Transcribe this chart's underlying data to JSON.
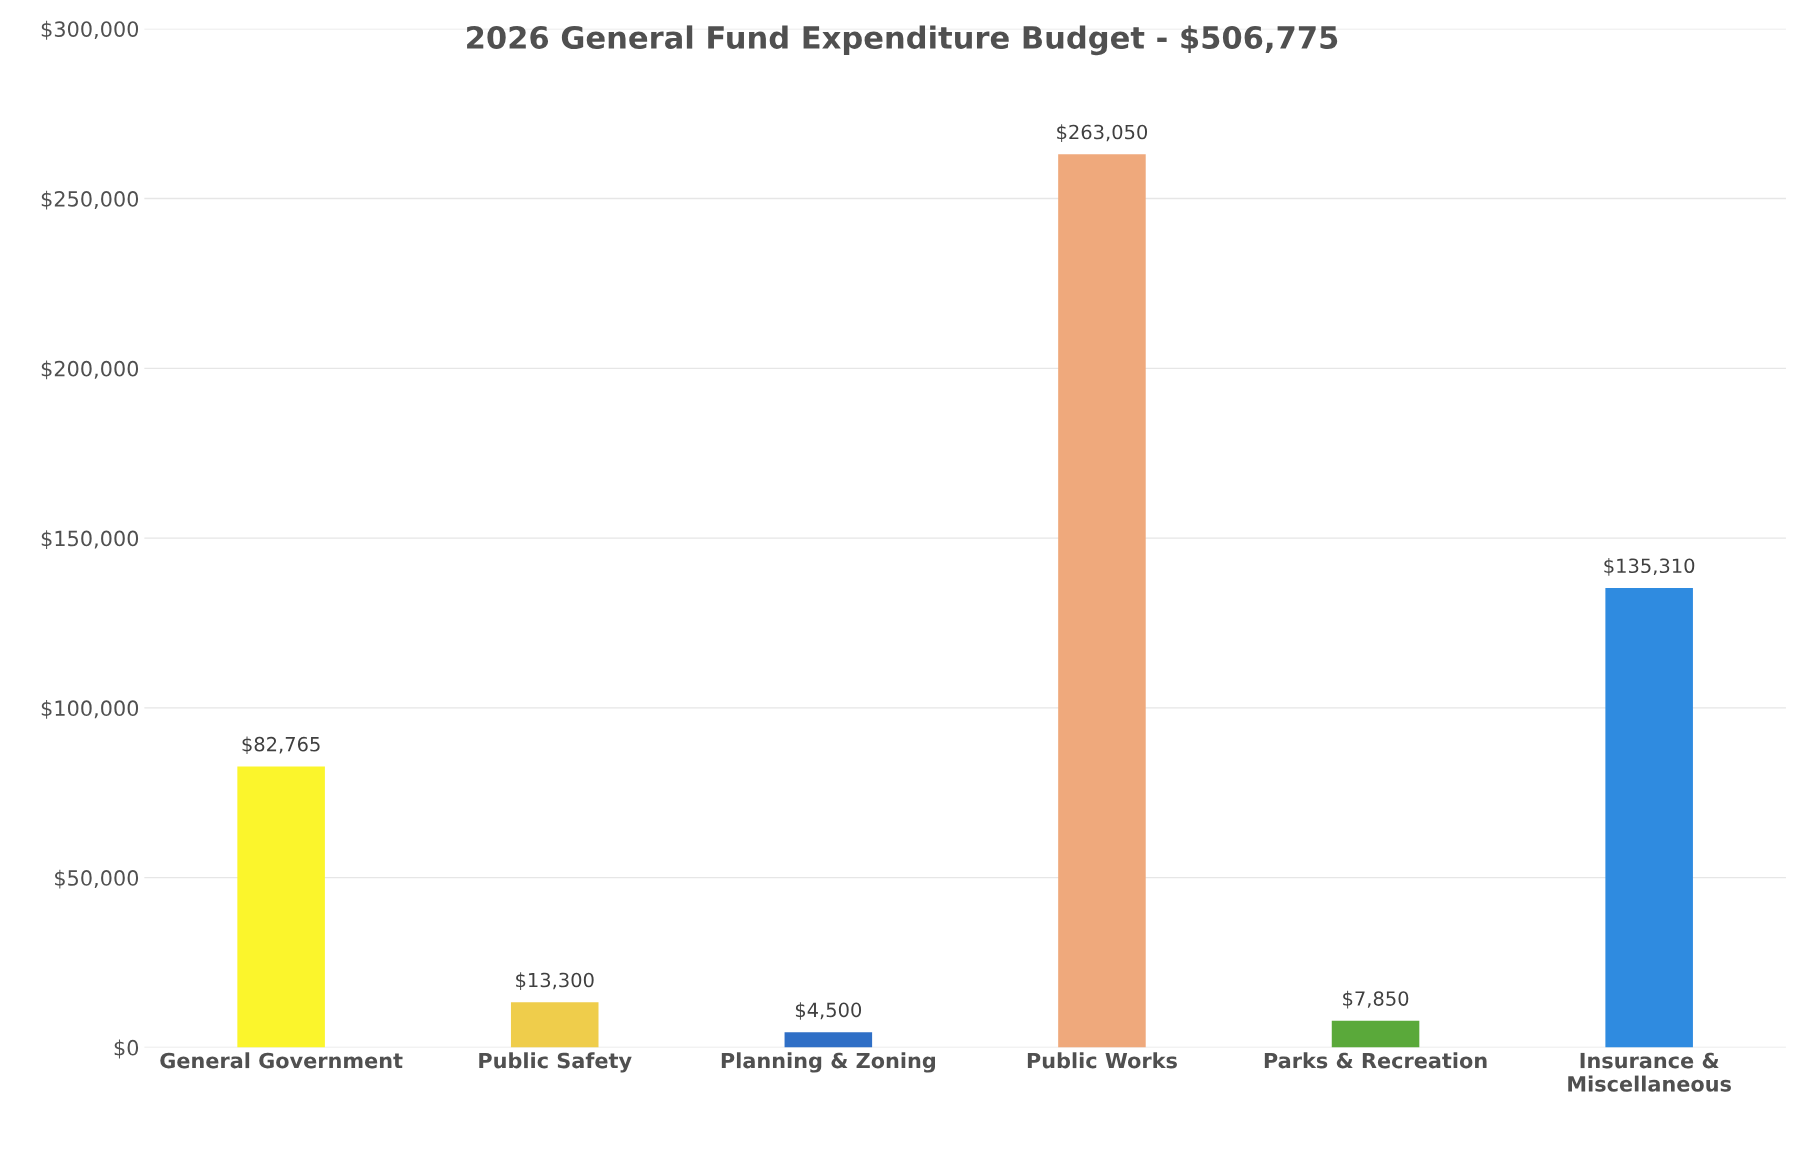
{
  "chart_data": {
    "type": "bar",
    "title": "2026 General Fund Expenditure Budget - $506,775",
    "categories": [
      "General Government",
      "Public Safety",
      "Planning & Zoning",
      "Public Works",
      "Parks & Recreation",
      "Insurance &\nMiscellaneous"
    ],
    "values": [
      82765,
      13300,
      4500,
      263050,
      7850,
      135310
    ],
    "colors": [
      "#fbf52c",
      "#efcd4b",
      "#2f6fc6",
      "#efa97c",
      "#5aa93a",
      "#2f8be0"
    ],
    "value_labels": [
      "$82,765",
      "$13,300",
      "$4,500",
      "$263,050",
      "$7,850",
      "$135,310"
    ],
    "ylim": [
      0,
      300000
    ],
    "yticks": [
      {
        "value": 0,
        "label": "$0"
      },
      {
        "value": 50000,
        "label": "$50,000"
      },
      {
        "value": 100000,
        "label": "$100,000"
      },
      {
        "value": 150000,
        "label": "$150,000"
      },
      {
        "value": 200000,
        "label": "$200,000"
      },
      {
        "value": 250000,
        "label": "$250,000"
      },
      {
        "value": 300000,
        "label": "$300,000"
      }
    ],
    "grid": "y"
  }
}
